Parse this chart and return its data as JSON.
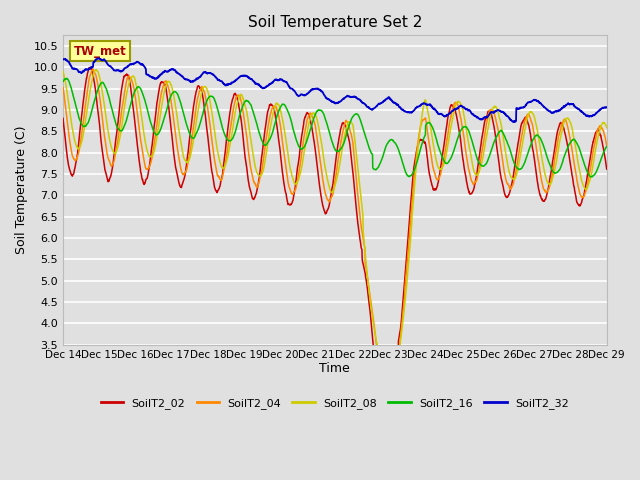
{
  "title": "Soil Temperature Set 2",
  "xlabel": "Time",
  "ylabel": "Soil Temperature (C)",
  "ylim": [
    3.5,
    10.75
  ],
  "xlim": [
    0,
    360
  ],
  "background_color": "#e0e0e0",
  "plot_background": "#e0e0e0",
  "grid_color": "#ffffff",
  "series": [
    {
      "label": "SoilT2_02",
      "color": "#cc0000"
    },
    {
      "label": "SoilT2_04",
      "color": "#ff8800"
    },
    {
      "label": "SoilT2_08",
      "color": "#cccc00"
    },
    {
      "label": "SoilT2_16",
      "color": "#00bb00"
    },
    {
      "label": "SoilT2_32",
      "color": "#0000cc"
    }
  ],
  "tw_met_box_color": "#ffff99",
  "tw_met_text_color": "#aa0000",
  "tw_met_border_color": "#999900",
  "xtick_labels": [
    "Dec 14",
    "Dec 15",
    "Dec 16",
    "Dec 17",
    "Dec 18",
    "Dec 19",
    "Dec 20",
    "Dec 21",
    "Dec 22",
    "Dec 23",
    "Dec 24",
    "Dec 25",
    "Dec 26",
    "Dec 27",
    "Dec 28",
    "Dec 29"
  ],
  "xtick_positions": [
    0,
    24,
    48,
    72,
    96,
    120,
    144,
    168,
    192,
    216,
    240,
    264,
    288,
    312,
    336,
    360
  ],
  "ytick_labels": [
    "3.5",
    "4.0",
    "4.5",
    "5.0",
    "5.5",
    "6.0",
    "6.5",
    "7.0",
    "7.5",
    "8.0",
    "8.5",
    "9.0",
    "9.5",
    "10.0",
    "10.5"
  ],
  "ytick_positions": [
    3.5,
    4.0,
    4.5,
    5.0,
    5.5,
    6.0,
    6.5,
    7.0,
    7.5,
    8.0,
    8.5,
    9.0,
    9.5,
    10.0,
    10.5
  ]
}
